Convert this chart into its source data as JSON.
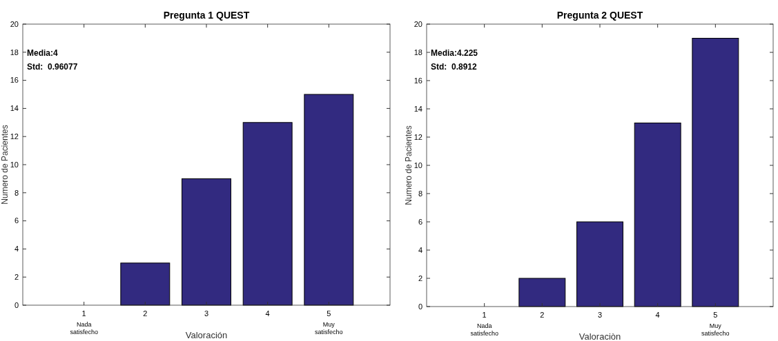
{
  "chart_data": [
    {
      "type": "bar",
      "title": "Pregunta 1  QUEST",
      "xlabel": "Valoración",
      "ylabel": "Numero de Pacientes",
      "x": [
        1,
        2,
        3,
        4,
        5
      ],
      "values": [
        0,
        3,
        9,
        13,
        15
      ],
      "color": "#322a80",
      "xlim": [
        0,
        6
      ],
      "xticks": [
        1,
        2,
        3,
        4,
        5
      ],
      "ylim": [
        0,
        20
      ],
      "yticks": [
        0,
        2,
        4,
        6,
        8,
        10,
        12,
        14,
        16,
        18,
        20
      ],
      "grid": false,
      "annotations": [
        "Media:4",
        "Std:  0.96077",
        "Nada satisfecho",
        "Muy satisfecho"
      ]
    },
    {
      "type": "bar",
      "title": "Pregunta 2  QUEST",
      "xlabel": "Valoraciòn",
      "ylabel": "Numero de Pacientes",
      "x": [
        1,
        2,
        3,
        4,
        5
      ],
      "values": [
        0,
        2,
        6,
        13,
        19
      ],
      "color": "#322a80",
      "xlim": [
        0,
        6
      ],
      "xticks": [
        1,
        2,
        3,
        4,
        5
      ],
      "ylim": [
        0,
        20
      ],
      "yticks": [
        0,
        2,
        4,
        6,
        8,
        10,
        12,
        14,
        16,
        18,
        20
      ],
      "grid": false,
      "annotations": [
        "Media:4.225",
        "Std:  0.8912",
        "Nada satisfecho",
        "Muy satisfecho"
      ]
    }
  ]
}
